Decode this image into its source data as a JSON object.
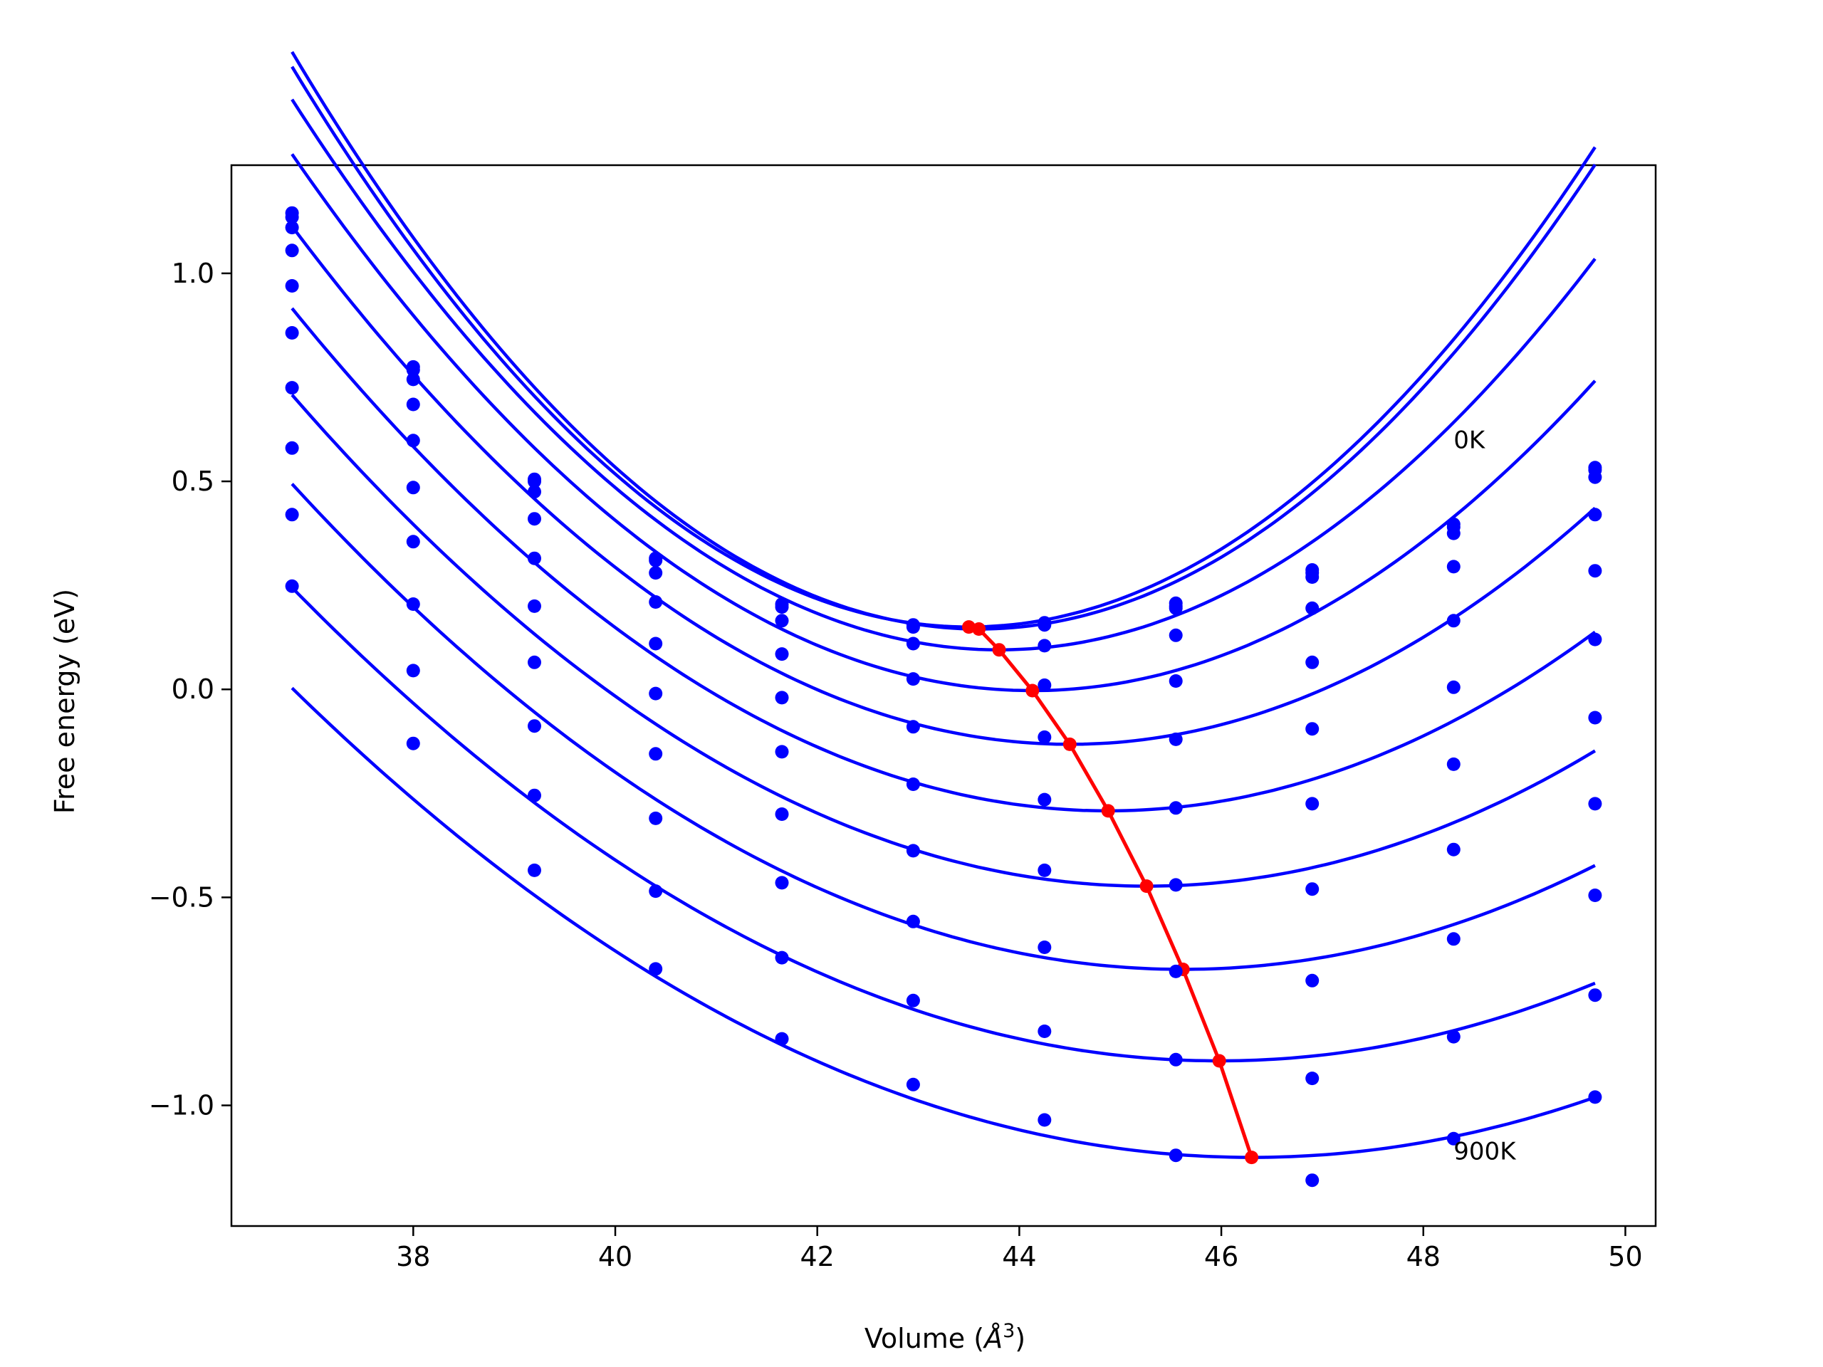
{
  "chart_data": {
    "type": "line",
    "title": "",
    "xlabel": "Volume (Å³)",
    "xlabel_main": "Volume (",
    "xlabel_unit": "Å",
    "xlabel_exp": "3",
    "xlabel_close": ")",
    "ylabel": "Free energy (eV)",
    "xlim": [
      36.2,
      50.3
    ],
    "ylim": [
      -1.29,
      1.26
    ],
    "xticks": [
      38,
      40,
      42,
      44,
      46,
      48,
      50
    ],
    "xtick_labels": [
      "38",
      "40",
      "42",
      "44",
      "46",
      "48",
      "50"
    ],
    "yticks": [
      -1.0,
      -0.5,
      0.0,
      0.5,
      1.0
    ],
    "ytick_labels": [
      "−1.0",
      "−0.5",
      "0.0",
      "0.5",
      "1.0"
    ],
    "grid": false,
    "curve_color": "#0000ff",
    "minima_color": "#ff0000",
    "annotations": [
      {
        "text": "0K",
        "x": 48.3,
        "y": 0.58
      },
      {
        "text": "900K",
        "x": 48.3,
        "y": -1.13
      }
    ],
    "x": [
      36.8,
      38.0,
      39.2,
      40.4,
      41.65,
      42.95,
      44.25,
      45.55,
      46.9,
      48.3,
      49.7
    ],
    "series": [
      {
        "values": [
          1.145,
          0.775,
          0.505,
          0.315,
          0.205,
          0.155,
          0.16,
          0.207,
          0.287,
          0.397,
          0.533
        ]
      },
      {
        "values": [
          1.135,
          0.768,
          0.5,
          0.31,
          0.198,
          0.15,
          0.155,
          0.2,
          0.28,
          0.39,
          0.527
        ]
      },
      {
        "values": [
          1.11,
          0.745,
          0.475,
          0.28,
          0.165,
          0.11,
          0.105,
          0.195,
          0.27,
          0.375,
          0.51
        ]
      },
      {
        "values": [
          1.055,
          0.685,
          0.41,
          0.21,
          0.085,
          0.025,
          0.01,
          0.13,
          0.195,
          0.295,
          0.42
        ]
      },
      {
        "values": [
          0.97,
          0.598,
          0.315,
          0.11,
          -0.02,
          -0.09,
          -0.115,
          0.02,
          0.065,
          0.165,
          0.285
        ]
      },
      {
        "values": [
          0.857,
          0.485,
          0.2,
          -0.01,
          -0.15,
          -0.228,
          -0.265,
          -0.12,
          -0.095,
          0.005,
          0.12
        ]
      },
      {
        "values": [
          0.725,
          0.355,
          0.065,
          -0.155,
          -0.3,
          -0.388,
          -0.435,
          -0.285,
          -0.275,
          -0.18,
          -0.068
        ]
      },
      {
        "values": [
          0.58,
          0.205,
          -0.088,
          -0.31,
          -0.465,
          -0.558,
          -0.62,
          -0.47,
          -0.48,
          -0.385,
          -0.275
        ]
      },
      {
        "values": [
          0.42,
          0.045,
          -0.255,
          -0.485,
          -0.645,
          -0.748,
          -0.822,
          -0.678,
          -0.7,
          -0.6,
          -0.495
        ]
      },
      {
        "values": [
          0.248,
          -0.13,
          -0.435,
          -0.672,
          -0.84,
          -0.95,
          -1.035,
          -0.89,
          -0.935,
          -0.835,
          -0.735
        ]
      },
      {
        "values": [
          null,
          null,
          null,
          null,
          null,
          null,
          null,
          -1.12,
          -1.18,
          -1.08,
          -0.98
        ]
      }
    ],
    "fits": [
      {
        "a": 0.03,
        "vmin": 43.5,
        "fmin": 0.15,
        "from": 36.8,
        "to": 49.7
      },
      {
        "a": 0.03,
        "vmin": 43.6,
        "fmin": 0.145,
        "from": 36.8,
        "to": 49.7
      },
      {
        "a": 0.027,
        "vmin": 43.8,
        "fmin": 0.095,
        "from": 36.8,
        "to": 49.7
      },
      {
        "a": 0.024,
        "vmin": 44.13,
        "fmin": -0.003,
        "from": 36.8,
        "to": 49.7
      },
      {
        "a": 0.021,
        "vmin": 44.5,
        "fmin": -0.132,
        "from": 36.8,
        "to": 49.7
      },
      {
        "a": 0.0185,
        "vmin": 44.88,
        "fmin": -0.292,
        "from": 36.8,
        "to": 49.7
      },
      {
        "a": 0.0165,
        "vmin": 45.26,
        "fmin": -0.473,
        "from": 36.8,
        "to": 49.7
      },
      {
        "a": 0.015,
        "vmin": 45.62,
        "fmin": -0.673,
        "from": 36.8,
        "to": 49.7
      },
      {
        "a": 0.0135,
        "vmin": 45.98,
        "fmin": -0.893,
        "from": 36.8,
        "to": 49.7
      },
      {
        "a": 0.0125,
        "vmin": 46.3,
        "fmin": -1.125,
        "from": 36.8,
        "to": 49.7
      }
    ],
    "minima": {
      "x": [
        43.5,
        43.6,
        43.8,
        44.13,
        44.5,
        44.88,
        45.26,
        45.62,
        45.98,
        46.3
      ],
      "y": [
        0.15,
        0.145,
        0.095,
        -0.003,
        -0.132,
        -0.292,
        -0.473,
        -0.673,
        -0.893,
        -1.125
      ]
    }
  }
}
